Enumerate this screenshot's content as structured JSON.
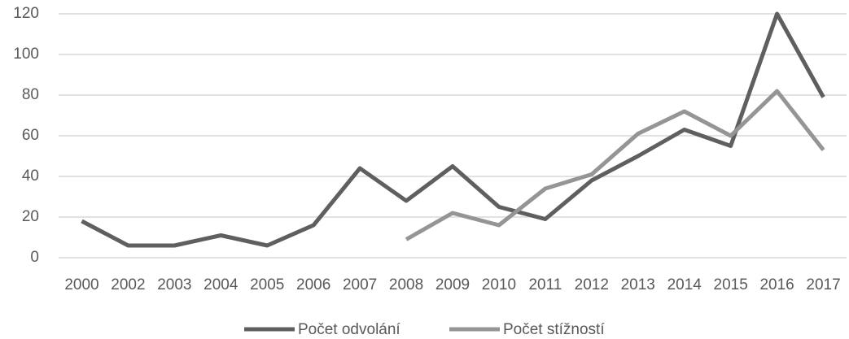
{
  "chart_data": {
    "type": "line",
    "categories": [
      "2000",
      "2002",
      "2003",
      "2004",
      "2005",
      "2006",
      "2007",
      "2008",
      "2009",
      "2010",
      "2011",
      "2012",
      "2013",
      "2014",
      "2015",
      "2016",
      "2017"
    ],
    "series": [
      {
        "name": "Počet odvolání",
        "color": "#5f5f61",
        "values": [
          18,
          6,
          6,
          11,
          6,
          16,
          44,
          28,
          45,
          25,
          19,
          38,
          50,
          63,
          55,
          120,
          79
        ]
      },
      {
        "name": "Počet stížností",
        "color": "#959595",
        "values": [
          null,
          null,
          null,
          null,
          null,
          null,
          null,
          9,
          22,
          16,
          34,
          41,
          61,
          72,
          60,
          82,
          53
        ]
      }
    ],
    "ylim": [
      0,
      120
    ],
    "yticks": [
      0,
      20,
      40,
      60,
      80,
      100,
      120
    ],
    "grid": true,
    "legend": "bottom"
  }
}
